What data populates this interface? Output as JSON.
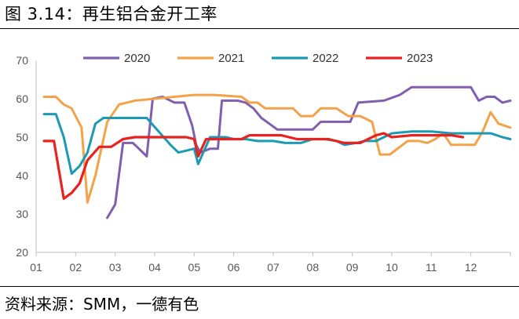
{
  "header": {
    "title": "图 3.14：再生铝合金开工率"
  },
  "footer": {
    "source": "资料来源：SMM，一德有色"
  },
  "chart_data": {
    "type": "line",
    "title": "再生铝合金开工率",
    "xlabel": "",
    "ylabel": "",
    "ylim": [
      20,
      70
    ],
    "yticks": [
      20,
      30,
      40,
      50,
      60,
      70
    ],
    "xlim": [
      1,
      13
    ],
    "xticks": [
      "01",
      "02",
      "03",
      "04",
      "05",
      "06",
      "07",
      "08",
      "09",
      "10",
      "11",
      "12"
    ],
    "legend_position": "top",
    "series": [
      {
        "name": "2020",
        "color": "#7f5fae",
        "points": [
          [
            2.8,
            29
          ],
          [
            3.0,
            32.5
          ],
          [
            3.2,
            48.5
          ],
          [
            3.45,
            48.5
          ],
          [
            3.6,
            47
          ],
          [
            3.8,
            45
          ],
          [
            3.95,
            60
          ],
          [
            4.2,
            60.5
          ],
          [
            4.5,
            59
          ],
          [
            4.75,
            59
          ],
          [
            4.95,
            53
          ],
          [
            5.05,
            48
          ],
          [
            5.15,
            46
          ],
          [
            5.4,
            47
          ],
          [
            5.6,
            47
          ],
          [
            5.7,
            59.5
          ],
          [
            6.1,
            59.5
          ],
          [
            6.3,
            59
          ],
          [
            6.5,
            57.5
          ],
          [
            6.7,
            55
          ],
          [
            6.9,
            53.5
          ],
          [
            7.1,
            52
          ],
          [
            7.6,
            52
          ],
          [
            8.0,
            52
          ],
          [
            8.2,
            54
          ],
          [
            8.6,
            54
          ],
          [
            8.95,
            54
          ],
          [
            9.15,
            59
          ],
          [
            9.8,
            59.5
          ],
          [
            10.2,
            61
          ],
          [
            10.5,
            63
          ],
          [
            11.5,
            63
          ],
          [
            12.0,
            63
          ],
          [
            12.2,
            59.5
          ],
          [
            12.4,
            60.5
          ],
          [
            12.6,
            60.5
          ],
          [
            12.8,
            59
          ],
          [
            13.0,
            59.5
          ]
        ]
      },
      {
        "name": "2021",
        "color": "#f4a24a",
        "points": [
          [
            1.2,
            60.5
          ],
          [
            1.5,
            60.5
          ],
          [
            1.7,
            58.5
          ],
          [
            1.9,
            57.5
          ],
          [
            2.15,
            52.5
          ],
          [
            2.3,
            33
          ],
          [
            2.5,
            40
          ],
          [
            2.8,
            54
          ],
          [
            3.1,
            58.5
          ],
          [
            3.5,
            59.5
          ],
          [
            4.0,
            60
          ],
          [
            4.5,
            60.5
          ],
          [
            5.0,
            61
          ],
          [
            5.5,
            61
          ],
          [
            6.2,
            60.5
          ],
          [
            6.4,
            59
          ],
          [
            6.6,
            59
          ],
          [
            6.8,
            57.5
          ],
          [
            7.2,
            57.5
          ],
          [
            7.5,
            57.5
          ],
          [
            7.7,
            55.5
          ],
          [
            8.0,
            55.5
          ],
          [
            8.2,
            57.5
          ],
          [
            8.6,
            57.5
          ],
          [
            8.9,
            55.5
          ],
          [
            9.2,
            55.5
          ],
          [
            9.5,
            54
          ],
          [
            9.7,
            45.5
          ],
          [
            9.95,
            45.5
          ],
          [
            10.4,
            49
          ],
          [
            10.7,
            49
          ],
          [
            10.9,
            48.5
          ],
          [
            11.1,
            49.5
          ],
          [
            11.3,
            51
          ],
          [
            11.5,
            48
          ],
          [
            11.8,
            48
          ],
          [
            12.1,
            48
          ],
          [
            12.3,
            51.5
          ],
          [
            12.5,
            56.5
          ],
          [
            12.7,
            53.5
          ],
          [
            13.0,
            52.5
          ]
        ]
      },
      {
        "name": "2022",
        "color": "#1a9ab3",
        "points": [
          [
            1.2,
            56
          ],
          [
            1.5,
            56
          ],
          [
            1.7,
            50
          ],
          [
            1.9,
            40.5
          ],
          [
            2.1,
            42.5
          ],
          [
            2.3,
            46
          ],
          [
            2.5,
            53.5
          ],
          [
            2.7,
            55
          ],
          [
            3.0,
            55
          ],
          [
            3.3,
            55
          ],
          [
            3.8,
            55
          ],
          [
            4.1,
            51.5
          ],
          [
            4.4,
            48
          ],
          [
            4.6,
            46
          ],
          [
            4.8,
            46.5
          ],
          [
            5.0,
            47
          ],
          [
            5.1,
            43
          ],
          [
            5.4,
            50
          ],
          [
            5.8,
            50
          ],
          [
            6.0,
            49.5
          ],
          [
            6.3,
            49.5
          ],
          [
            6.6,
            49
          ],
          [
            7.0,
            49
          ],
          [
            7.3,
            48.5
          ],
          [
            7.7,
            48.5
          ],
          [
            8.0,
            49.5
          ],
          [
            8.3,
            49.5
          ],
          [
            8.6,
            49
          ],
          [
            8.8,
            48
          ],
          [
            9.1,
            48.5
          ],
          [
            9.3,
            49
          ],
          [
            9.6,
            49
          ],
          [
            10.0,
            51
          ],
          [
            10.5,
            51.5
          ],
          [
            11.0,
            51.5
          ],
          [
            11.5,
            51
          ],
          [
            12.0,
            51
          ],
          [
            12.5,
            51
          ],
          [
            12.8,
            50
          ],
          [
            13.0,
            49.5
          ]
        ]
      },
      {
        "name": "2023",
        "color": "#e8231f",
        "points": [
          [
            1.2,
            49
          ],
          [
            1.45,
            49
          ],
          [
            1.7,
            34
          ],
          [
            1.9,
            35.5
          ],
          [
            2.1,
            38
          ],
          [
            2.3,
            44
          ],
          [
            2.6,
            47.5
          ],
          [
            2.9,
            47.5
          ],
          [
            3.2,
            49.5
          ],
          [
            3.5,
            50
          ],
          [
            4.0,
            50
          ],
          [
            4.5,
            50
          ],
          [
            4.8,
            50
          ],
          [
            5.0,
            49.5
          ],
          [
            5.1,
            45
          ],
          [
            5.3,
            49.5
          ],
          [
            5.6,
            49.5
          ],
          [
            6.2,
            49.5
          ],
          [
            6.4,
            50.5
          ],
          [
            6.8,
            50.5
          ],
          [
            7.2,
            50.5
          ],
          [
            7.6,
            49.5
          ],
          [
            8.0,
            49.5
          ],
          [
            8.4,
            49.5
          ],
          [
            8.8,
            48.5
          ],
          [
            9.2,
            48.5
          ],
          [
            9.4,
            49.5
          ],
          [
            9.6,
            50.5
          ],
          [
            9.8,
            51
          ],
          [
            10.0,
            50
          ],
          [
            10.5,
            50.5
          ],
          [
            11.0,
            50.5
          ],
          [
            11.5,
            50.5
          ],
          [
            11.8,
            50
          ]
        ]
      }
    ]
  }
}
